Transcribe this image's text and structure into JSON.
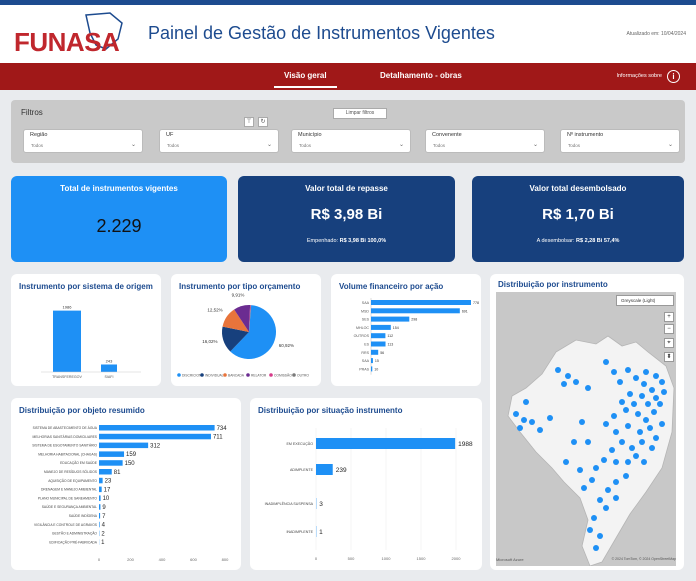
{
  "header": {
    "logo_text": "FUNASA",
    "title": "Painel de Gestão de Instrumentos Vigentes",
    "updated": "Atualizado em: 10/04/2024"
  },
  "nav": {
    "tabs": [
      {
        "label": "Visão geral",
        "active": true
      },
      {
        "label": "Detalhamento - obras",
        "active": false
      }
    ],
    "info_label": "Informações sobre",
    "info_icon": "i"
  },
  "filters": {
    "title": "Filtros",
    "clear_label": "Limpar filtros",
    "fields": [
      {
        "label": "Região",
        "value": "Todos"
      },
      {
        "label": "UF",
        "value": "Todos"
      },
      {
        "label": "Município",
        "value": "Todos"
      },
      {
        "label": "Convenente",
        "value": "Todos"
      },
      {
        "label": "Nº instrumento",
        "value": "Todos"
      }
    ]
  },
  "kpis": {
    "total": {
      "title": "Total de instrumentos vigentes",
      "value": "2.229",
      "color": "#1e90f5"
    },
    "repasse": {
      "title": "Valor total de repasse",
      "value": "R$ 3,98 Bi",
      "sub_label": "Empenhado:",
      "sub_value": "R$ 3,98 Bi 100,0%",
      "color": "#17407d"
    },
    "desembolsado": {
      "title": "Valor total desembolsado",
      "value": "R$ 1,70 Bi",
      "sub_label": "A desembolsar:",
      "sub_value": "R$ 2,28 Bi 57,4%",
      "color": "#17407d"
    }
  },
  "colors": {
    "bar": "#1e90f5",
    "navy": "#17407d",
    "nav_red": "#a01818",
    "dot": "#1e90f5"
  },
  "chart_data": [
    {
      "id": "origem",
      "type": "bar",
      "title": "Instrumento por sistema de origem",
      "categories": [
        "TRANSFEREGOV",
        "SIAFI"
      ],
      "values": [
        1986,
        243
      ],
      "ylim": [
        0,
        2200
      ]
    },
    {
      "id": "orcamento",
      "type": "pie",
      "title": "Instrumento por tipo orçamento",
      "labels": [
        "DISCRICION",
        "INDIVIDUAL",
        "BANCADA",
        "RELATOR",
        "COMISSÃO",
        "OUTRO"
      ],
      "values": [
        60.92,
        16.02,
        12.52,
        9.91,
        0.4,
        0.23
      ],
      "value_labels": [
        "60,92%",
        "16,02%",
        "12,52%",
        "9,91%",
        "",
        ""
      ],
      "colors": [
        "#1e90f5",
        "#17407d",
        "#e8743b",
        "#6b2c91",
        "#d63a8a",
        "#7a7a7a"
      ]
    },
    {
      "id": "acao",
      "type": "bar",
      "orientation": "horizontal",
      "title": "Volume financeiro por ação",
      "categories": [
        "SAA",
        "MSD",
        "SES",
        "MHLOC",
        "OUTROS",
        "ES",
        "RRS",
        "SAA",
        "PRAS"
      ],
      "values": [
        778,
        691,
        298,
        154,
        112,
        113,
        56,
        15,
        10
      ]
    },
    {
      "id": "objeto",
      "type": "bar",
      "orientation": "horizontal",
      "title": "Distribuição por objeto resumido",
      "categories": [
        "SISTEMA DE ABASTECIMENTO DE ÁGUA",
        "MELHORIAS SANITÁRIAS DOMICILIARES",
        "SISTEMA DE ESGOTAMENTO SANITÁRIO",
        "MELHORIA HABITACIONAL (CHAGAS)",
        "EDUCAÇÃO EM SAÚDE",
        "MANEJO DE RESÍDUOS SÓLIDOS",
        "AQUISIÇÃO DE EQUIPAMENTO",
        "DRENAGEM E MANEJO AMBIENTAL",
        "PLANO MUNICIPAL DE SANEAMENTO",
        "SAÚDE E SEGURANÇA AMBIENTAL",
        "SAÚDE INDÍGENA",
        "VIGILÂNCIA E CONTROLE DE AGRAVOS",
        "GESTÃO E ADMINISTRAÇÃO",
        "EDIFICAÇÃO PRÉ-FABRICADA"
      ],
      "values": [
        734,
        711,
        312,
        159,
        150,
        81,
        23,
        17,
        10,
        9,
        7,
        4,
        2,
        1
      ],
      "xticks": [
        0,
        200,
        400,
        600,
        800
      ],
      "xlim": [
        0,
        800
      ]
    },
    {
      "id": "situacao",
      "type": "bar",
      "orientation": "horizontal",
      "title": "Distribuição por situação instrumento",
      "categories": [
        "EM EXECUÇÃO",
        "ADIMPLENTE",
        "INADIMPLÊNCIA SUSPENSA",
        "INADIMPLENTE"
      ],
      "values": [
        1988,
        239,
        3,
        1
      ],
      "xticks": [
        0,
        500,
        1000,
        1500,
        2000
      ],
      "xlim": [
        0,
        2000
      ]
    }
  ],
  "map": {
    "title": "Distribuição por instrumento",
    "layer_label": "Greyscale (Light)",
    "controls": [
      "+",
      "−",
      "⌖",
      "⬍"
    ],
    "credit_left": "Microsoft Azure",
    "credit_right": "© 2024 TomTom, © 2024 OpenStreetMap"
  }
}
